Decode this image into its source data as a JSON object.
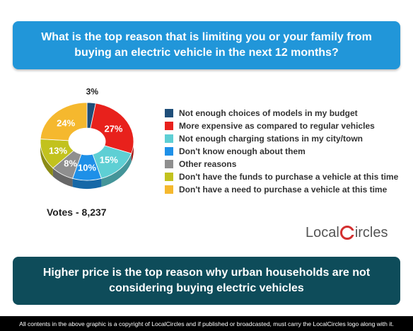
{
  "header": {
    "question": "What is the top reason that is limiting you or your family from buying an electric vehicle in the next 12 months?"
  },
  "chart_data": {
    "type": "pie",
    "categories": [
      "Not enough choices of models in my budget",
      "More expensive as compared to regular vehicles",
      "Not enough charging stations in my city/town",
      "Don't know enough about them",
      "Other reasons",
      "Don't have the funds to purchase a vehicle at this time",
      "Don't have a need to purchase a vehicle at this time"
    ],
    "values": [
      3,
      27,
      15,
      10,
      8,
      13,
      24
    ],
    "labels": [
      "3%",
      "27%",
      "15%",
      "10%",
      "8%",
      "13%",
      "24%"
    ],
    "colors": [
      "#1f4e79",
      "#e8211c",
      "#5ecfd4",
      "#1e90e8",
      "#8f8f8f",
      "#c2c21e",
      "#f5b82e"
    ],
    "legend_position": "right"
  },
  "votes": "Votes - 8,237",
  "logo": {
    "local": "Local",
    "circles": "ircles"
  },
  "conclusion": "Higher price is the top reason why urban households are not considering buying electric vehicles",
  "footer": "All contents in the above graphic is a copyright of LocalCircles and if published or broadcasted, must carry the LocalCircles logo along with it."
}
